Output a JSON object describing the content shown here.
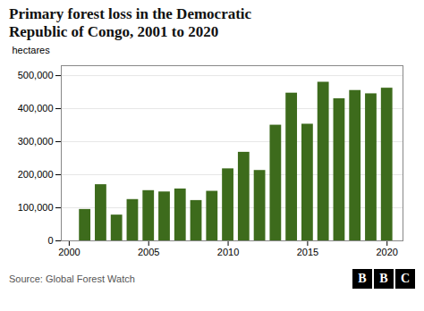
{
  "chart_data": {
    "type": "bar",
    "title": "Primary forest loss in the Democratic\nRepublic of Congo, 2001 to 2020",
    "source": "Source: Global Forest Watch",
    "annotations": [
      "BBC"
    ],
    "x": [
      2001,
      2002,
      2003,
      2004,
      2005,
      2006,
      2007,
      2008,
      2009,
      2010,
      2011,
      2012,
      2013,
      2014,
      2015,
      2016,
      2017,
      2018,
      2019,
      2020
    ],
    "values": [
      95000,
      170000,
      78000,
      125000,
      152000,
      148000,
      157000,
      122000,
      150000,
      218000,
      268000,
      213000,
      350000,
      447000,
      353000,
      480000,
      430000,
      455000,
      445000,
      462000
    ],
    "color": "#3d6b1c",
    "xlim": [
      1999.5,
      2021.0
    ],
    "xticks": [
      2000,
      2005,
      2010,
      2015,
      2020
    ],
    "ylim": [
      0,
      530000
    ],
    "yticks": [
      0,
      {
        "value": 100000,
        "label": "100,000"
      },
      {
        "value": 200000,
        "label": "200,000"
      },
      {
        "value": 300000,
        "label": "300,000"
      },
      {
        "value": 400000,
        "label": "400,000"
      },
      {
        "value": 500000,
        "label": "500,000"
      }
    ],
    "ylabel": "hectares",
    "grid": true
  }
}
